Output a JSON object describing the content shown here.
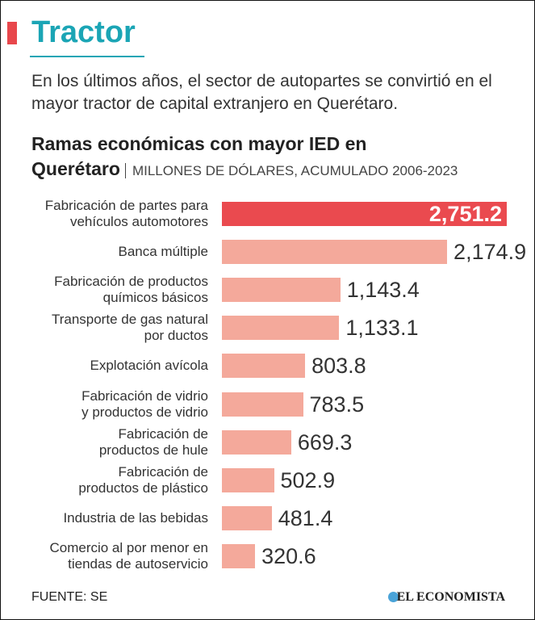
{
  "header": {
    "title": "Tractor",
    "intro": "En los últimos años, el sector de autopartes se convirtió en el mayor tractor de capital extranjero en Querétaro."
  },
  "chart_data": {
    "type": "bar",
    "orientation": "horizontal",
    "title": "Ramas económicas con mayor IED en Querétaro",
    "subtitle": "MILLONES DE DÓLARES, ACUMULADO 2006-2023",
    "categories": [
      "Fabricación de partes para\nvehículos automotores",
      "Banca múltiple",
      "Fabricación de productos\nquímicos básicos",
      "Transporte de gas natural\npor ductos",
      "Explotación avícola",
      "Fabricación de vidrio\ny productos de vidrio",
      "Fabricación de\nproductos de hule",
      "Fabricación de\nproductos de plástico",
      "Industria de las bebidas",
      "Comercio al por menor en\ntiendas de autoservicio"
    ],
    "values": [
      2751.2,
      2174.9,
      1143.4,
      1133.1,
      803.8,
      783.5,
      669.3,
      502.9,
      481.4,
      320.6
    ],
    "value_labels": [
      "2,751.2",
      "2,174.9",
      "1,143.4",
      "1,133.1",
      "803.8",
      "783.5",
      "669.3",
      "502.9",
      "481.4",
      "320.6"
    ],
    "colors": [
      "#ea4a4f",
      "#f4a99b",
      "#f4a99b",
      "#f4a99b",
      "#f4a99b",
      "#f4a99b",
      "#f4a99b",
      "#f4a99b",
      "#f4a99b",
      "#f4a99b"
    ],
    "source": "FUENTE: SE"
  },
  "footer": {
    "brand": "EL ECONOMISTA"
  }
}
